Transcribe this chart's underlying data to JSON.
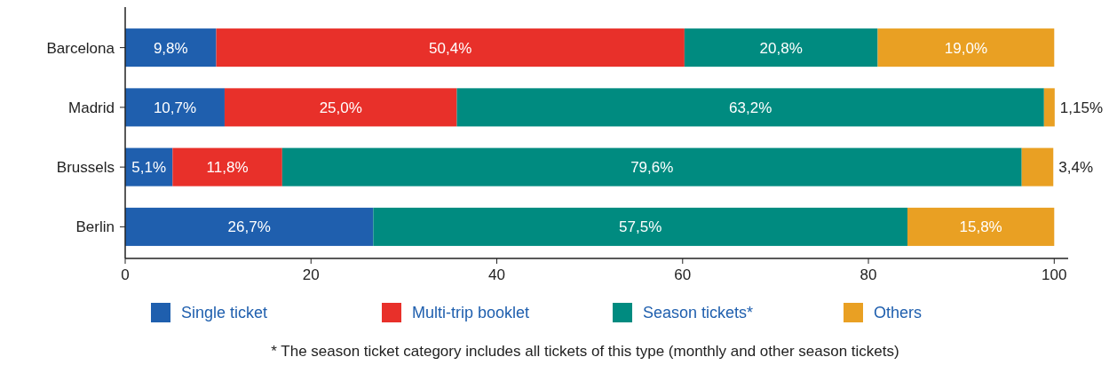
{
  "chart_data": {
    "type": "bar",
    "orientation": "horizontal",
    "stacked": true,
    "categories": [
      "Barcelona",
      "Madrid",
      "Brussels",
      "Berlin"
    ],
    "series": [
      {
        "name": "Single ticket",
        "color": "#1f5fae",
        "values": [
          9.8,
          10.7,
          5.1,
          26.7
        ],
        "value_labels": [
          "9,8%",
          "10,7%",
          "5,1%",
          "26,7%"
        ]
      },
      {
        "name": "Multi-trip booklet",
        "color": "#e8302a",
        "values": [
          50.4,
          25.0,
          11.8,
          null
        ],
        "value_labels": [
          "50,4%",
          "25,0%",
          "11,8%",
          null
        ]
      },
      {
        "name": "Season tickets*",
        "color": "#008b80",
        "values": [
          20.8,
          63.2,
          79.6,
          57.5
        ],
        "value_labels": [
          "20,8%",
          "63,2%",
          "79,6%",
          "57,5%"
        ]
      },
      {
        "name": "Others",
        "color": "#e9a023",
        "values": [
          19.0,
          1.15,
          3.4,
          15.8
        ],
        "value_labels": [
          "19,0%",
          "1,15%",
          "3,4%",
          "15,8%"
        ]
      }
    ],
    "xlim": [
      0,
      101.5
    ],
    "xticks": [
      0,
      20,
      40,
      60,
      80,
      100
    ],
    "grid": false,
    "legend": "bottom",
    "annotations": [
      "* The season ticket category includes all tickets of this type (monthly and other season tickets)"
    ]
  }
}
